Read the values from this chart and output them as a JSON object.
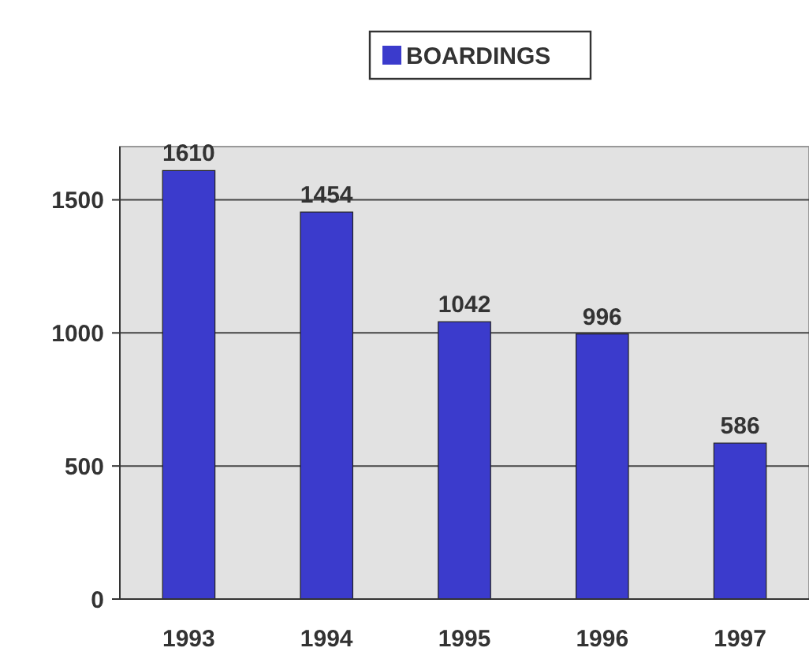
{
  "chart_data": {
    "type": "bar",
    "categories": [
      "1993",
      "1994",
      "1995",
      "1996",
      "1997"
    ],
    "series": [
      {
        "name": "BOARDINGS",
        "color": "#3b3bcc",
        "values": [
          1610,
          1454,
          1042,
          996,
          586
        ]
      }
    ],
    "ylim": [
      0,
      1700
    ],
    "yticks": [
      0,
      500,
      1000,
      1500
    ],
    "grid": "y",
    "legend": "top",
    "data_labels": true
  }
}
